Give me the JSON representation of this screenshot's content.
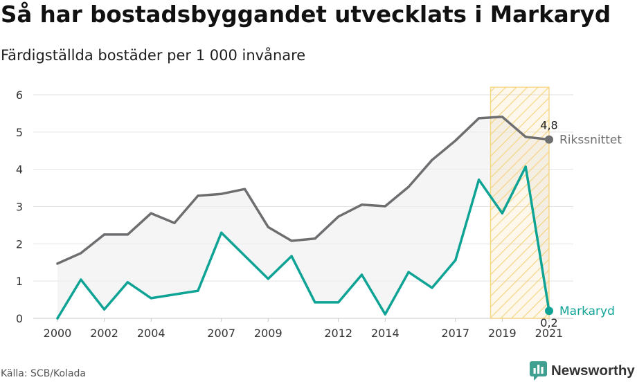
{
  "chart_data": {
    "type": "line",
    "title": "Så har bostadsbyggandet utvecklats i Markaryd",
    "subtitle": "Färdigställda bostäder per 1 000 invånare",
    "x": [
      2000,
      2001,
      2002,
      2003,
      2004,
      2005,
      2006,
      2007,
      2008,
      2009,
      2010,
      2011,
      2012,
      2013,
      2014,
      2015,
      2016,
      2017,
      2018,
      2019,
      2020,
      2021
    ],
    "x_ticks": [
      2000,
      2002,
      2004,
      2007,
      2009,
      2012,
      2014,
      2017,
      2019,
      2021
    ],
    "y_ticks": [
      0,
      1,
      2,
      3,
      4,
      5,
      6
    ],
    "xlim": [
      2000,
      2021
    ],
    "ylim": [
      0,
      6
    ],
    "grid": "horizontal",
    "legend": "direct-labels-right",
    "series": [
      {
        "name": "Rikssnittet",
        "color": "#6e6e71",
        "end_label": "4,8",
        "values": [
          1.47,
          1.75,
          2.25,
          2.25,
          2.82,
          2.56,
          3.29,
          3.34,
          3.47,
          2.45,
          2.08,
          2.14,
          2.73,
          3.05,
          3.01,
          3.53,
          4.25,
          4.77,
          5.37,
          5.41,
          4.87,
          4.8
        ]
      },
      {
        "name": "Markaryd",
        "color": "#0ea394",
        "end_label": "0,2",
        "values": [
          0,
          1.04,
          0.24,
          0.97,
          0.54,
          0.64,
          0.74,
          2.3,
          1.68,
          1.06,
          1.67,
          0.43,
          0.43,
          1.17,
          0.11,
          1.24,
          0.82,
          1.56,
          3.72,
          2.82,
          4.07,
          0.2
        ]
      }
    ],
    "fill_between_color": "#eeeeee",
    "highlight": {
      "x_start": 2018.5,
      "x_end": 2021,
      "color": "#f5cf72"
    }
  },
  "source": "Källa: SCB/Kolada",
  "logo": {
    "text": "Newsworthy",
    "icon": "newsworthy-chart-bubble-icon",
    "color": "#3f9f91"
  }
}
